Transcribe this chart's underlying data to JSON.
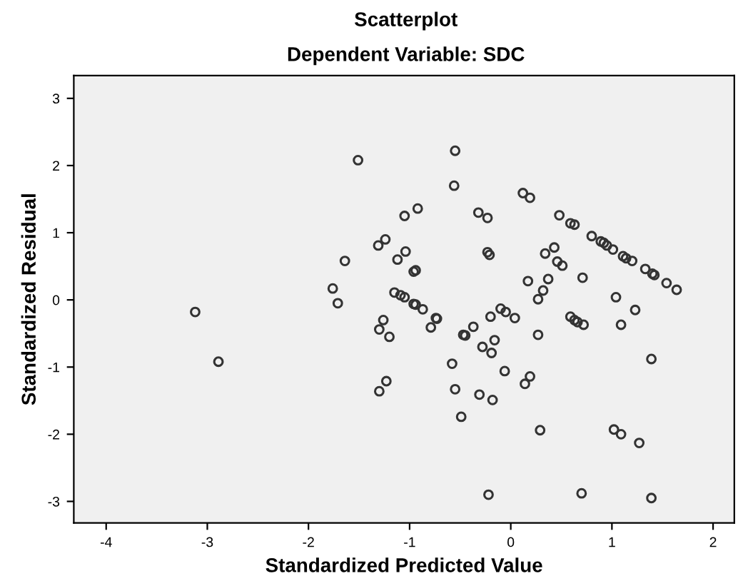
{
  "chart_data": {
    "type": "scatter",
    "title": "Scatterplot",
    "subtitle": "Dependent Variable: SDC",
    "xlabel": "Standardized Predicted Value",
    "ylabel": "Standardized Residual",
    "xlim": [
      -4.32,
      2.21
    ],
    "ylim": [
      -3.32,
      3.34
    ],
    "xticks": [
      -4,
      -3,
      -2,
      -1,
      0,
      1,
      2
    ],
    "yticks": [
      -3,
      -2,
      -1,
      0,
      1,
      2,
      3
    ],
    "grid": false,
    "legend": false,
    "marker": "circle",
    "series": [
      {
        "color": "#333333",
        "x": [
          -1.51,
          -1.31,
          -1.24,
          -1.64,
          -1.76,
          -1.12,
          -1.15,
          -3.12,
          -2.89,
          -1.71,
          -1.26,
          -1.3,
          -1.2,
          -1.23,
          -1.3,
          -0.55,
          -0.56,
          0.12,
          0.19,
          -1.05,
          -0.92,
          -0.32,
          -0.23,
          0.48,
          0.59,
          0.63,
          -1.04,
          -0.94,
          -0.96,
          -0.23,
          -0.21,
          0.34,
          0.43,
          0.46,
          0.51,
          0.71,
          0.17,
          0.37,
          0.32,
          1.04,
          0.8,
          0.89,
          0.92,
          0.95,
          1.01,
          1.11,
          1.14,
          1.2,
          1.33,
          1.4,
          1.42,
          1.54,
          1.64,
          -1.09,
          -1.05,
          -0.96,
          -0.94,
          -0.87,
          -0.74,
          -0.73,
          -0.79,
          -0.47,
          -0.45,
          -0.37,
          -0.2,
          -0.1,
          -0.05,
          0.04,
          -0.28,
          -0.16,
          -0.19,
          -0.58,
          -0.06,
          0.19,
          0.14,
          -0.55,
          -0.31,
          -0.18,
          -0.49,
          0.27,
          0.27,
          0.59,
          0.63,
          0.66,
          0.72,
          1.23,
          1.09,
          1.39,
          0.29,
          1.02,
          1.09,
          1.27,
          -0.22,
          0.7,
          1.39
        ],
        "values": [
          2.08,
          0.81,
          0.9,
          0.58,
          0.17,
          0.6,
          0.11,
          -0.18,
          -0.92,
          -0.05,
          -0.3,
          -0.44,
          -0.55,
          -1.21,
          -1.36,
          2.22,
          1.7,
          1.59,
          1.52,
          1.25,
          1.36,
          1.3,
          1.22,
          1.26,
          1.14,
          1.12,
          0.72,
          0.44,
          0.42,
          0.71,
          0.67,
          0.69,
          0.78,
          0.57,
          0.51,
          0.33,
          0.28,
          0.31,
          0.14,
          0.04,
          0.95,
          0.87,
          0.85,
          0.81,
          0.75,
          0.65,
          0.62,
          0.58,
          0.46,
          0.39,
          0.37,
          0.25,
          0.15,
          0.07,
          0.04,
          -0.06,
          -0.07,
          -0.14,
          -0.27,
          -0.28,
          -0.41,
          -0.52,
          -0.53,
          -0.4,
          -0.25,
          -0.13,
          -0.18,
          -0.27,
          -0.7,
          -0.6,
          -0.79,
          -0.95,
          -1.06,
          -1.14,
          -1.25,
          -1.33,
          -1.41,
          -1.49,
          -1.74,
          -0.52,
          0.01,
          -0.25,
          -0.3,
          -0.33,
          -0.37,
          -0.15,
          -0.37,
          -0.88,
          -1.94,
          -1.93,
          -2.0,
          -2.13,
          -2.9,
          -2.88,
          -2.95
        ]
      }
    ]
  }
}
